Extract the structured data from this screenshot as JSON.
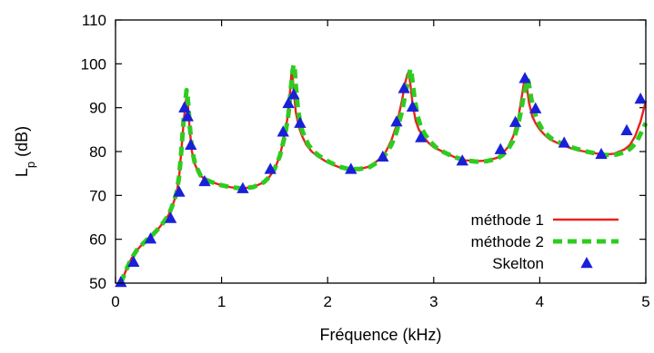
{
  "chart_data": {
    "type": "line",
    "xlabel": "Fréquence (kHz)",
    "ylabel_main": "L",
    "ylabel_sub": "p",
    "ylabel_unit": "(dB)",
    "xlim": [
      0,
      5
    ],
    "ylim": [
      50,
      110
    ],
    "xticks": [
      0,
      1,
      2,
      3,
      4,
      5
    ],
    "yticks": [
      50,
      60,
      70,
      80,
      90,
      100,
      110
    ],
    "grid": false,
    "legend_position": "bottom-right",
    "series": [
      {
        "name": "méthode 1",
        "style": "solid-line",
        "color": "#e8231e",
        "x": [
          0.05,
          0.1,
          0.15,
          0.2,
          0.25,
          0.3,
          0.35,
          0.4,
          0.45,
          0.5,
          0.55,
          0.58,
          0.6,
          0.62,
          0.64,
          0.66,
          0.67,
          0.68,
          0.7,
          0.72,
          0.75,
          0.8,
          0.85,
          0.9,
          1.0,
          1.1,
          1.2,
          1.3,
          1.4,
          1.45,
          1.5,
          1.55,
          1.6,
          1.63,
          1.65,
          1.66,
          1.67,
          1.68,
          1.7,
          1.73,
          1.76,
          1.8,
          1.85,
          1.9,
          2.0,
          2.1,
          2.2,
          2.3,
          2.4,
          2.5,
          2.55,
          2.6,
          2.65,
          2.7,
          2.73,
          2.75,
          2.76,
          2.77,
          2.78,
          2.8,
          2.83,
          2.86,
          2.9,
          2.95,
          3.0,
          3.1,
          3.2,
          3.3,
          3.4,
          3.5,
          3.6,
          3.65,
          3.7,
          3.75,
          3.8,
          3.83,
          3.85,
          3.86,
          3.87,
          3.88,
          3.9,
          3.93,
          3.96,
          4.0,
          4.05,
          4.1,
          4.2,
          4.3,
          4.4,
          4.5,
          4.6,
          4.7,
          4.8,
          4.85,
          4.9,
          4.95,
          5.0
        ],
        "y": [
          50.0,
          53.0,
          55.6,
          57.5,
          58.8,
          60.0,
          61.0,
          62.3,
          63.8,
          65.5,
          68.5,
          71.0,
          74.5,
          80.0,
          86.0,
          91.0,
          92.5,
          91.5,
          85.0,
          80.0,
          77.0,
          74.5,
          73.6,
          73.1,
          72.3,
          71.8,
          71.6,
          71.9,
          73.0,
          74.2,
          76.0,
          79.0,
          84.5,
          89.0,
          95.0,
          98.5,
          97.0,
          94.0,
          89.0,
          85.5,
          83.5,
          81.5,
          80.0,
          79.0,
          77.5,
          76.5,
          75.9,
          76.0,
          76.6,
          78.5,
          80.0,
          82.5,
          86.0,
          91.5,
          95.5,
          97.5,
          98.0,
          97.0,
          95.5,
          91.0,
          87.0,
          85.0,
          83.5,
          82.0,
          81.0,
          79.8,
          78.7,
          78.0,
          77.8,
          77.9,
          78.6,
          79.6,
          81.0,
          83.5,
          88.0,
          92.5,
          95.5,
          96.5,
          96.0,
          94.5,
          91.0,
          88.0,
          86.5,
          85.0,
          83.7,
          82.7,
          81.6,
          80.7,
          80.1,
          79.7,
          79.3,
          79.5,
          80.5,
          81.5,
          83.5,
          86.8,
          91.5
        ]
      },
      {
        "name": "méthode 2",
        "style": "dashed-line",
        "color": "#2ecc1f",
        "x": [
          0.05,
          0.1,
          0.15,
          0.2,
          0.25,
          0.3,
          0.35,
          0.4,
          0.45,
          0.5,
          0.55,
          0.58,
          0.6,
          0.62,
          0.64,
          0.66,
          0.67,
          0.68,
          0.7,
          0.72,
          0.75,
          0.8,
          0.85,
          0.9,
          1.0,
          1.1,
          1.2,
          1.3,
          1.4,
          1.45,
          1.5,
          1.55,
          1.6,
          1.63,
          1.65,
          1.67,
          1.68,
          1.69,
          1.7,
          1.72,
          1.75,
          1.78,
          1.82,
          1.87,
          1.92,
          2.0,
          2.1,
          2.2,
          2.3,
          2.4,
          2.5,
          2.55,
          2.6,
          2.65,
          2.7,
          2.74,
          2.77,
          2.78,
          2.79,
          2.8,
          2.82,
          2.85,
          2.88,
          2.92,
          2.97,
          3.02,
          3.1,
          3.2,
          3.3,
          3.4,
          3.5,
          3.6,
          3.65,
          3.7,
          3.75,
          3.8,
          3.84,
          3.87,
          3.88,
          3.89,
          3.9,
          3.92,
          3.95,
          3.98,
          4.02,
          4.07,
          4.12,
          4.22,
          4.32,
          4.42,
          4.52,
          4.62,
          4.72,
          4.82,
          4.87,
          4.92,
          4.97,
          5.0
        ],
        "y": [
          50.0,
          53.0,
          55.6,
          57.5,
          58.8,
          60.0,
          61.0,
          62.3,
          63.8,
          65.5,
          68.5,
          71.0,
          74.5,
          80.0,
          86.5,
          92.0,
          94.0,
          92.5,
          86.0,
          80.5,
          77.2,
          74.6,
          73.6,
          73.1,
          72.3,
          71.8,
          71.6,
          71.9,
          73.0,
          74.2,
          76.0,
          79.0,
          84.0,
          88.5,
          93.5,
          98.5,
          99.8,
          98.5,
          95.0,
          89.5,
          85.5,
          83.5,
          81.5,
          80.0,
          79.0,
          77.8,
          76.6,
          76.0,
          76.0,
          76.5,
          78.0,
          79.5,
          81.5,
          84.5,
          89.0,
          94.0,
          97.5,
          98.8,
          98.0,
          96.0,
          92.0,
          88.0,
          85.5,
          83.8,
          82.2,
          81.0,
          79.8,
          78.7,
          78.0,
          77.7,
          77.8,
          78.4,
          79.2,
          80.5,
          82.5,
          86.5,
          91.5,
          95.0,
          96.5,
          96.2,
          95.0,
          92.0,
          89.0,
          87.0,
          85.2,
          83.8,
          82.8,
          81.7,
          80.8,
          80.1,
          79.6,
          79.2,
          79.3,
          80.0,
          81.0,
          82.5,
          85.0,
          86.5
        ]
      },
      {
        "name": "Skelton",
        "style": "triangle-markers",
        "color": "#1a20d8",
        "x": [
          0.05,
          0.17,
          0.33,
          0.52,
          0.6,
          0.65,
          0.68,
          0.71,
          0.84,
          1.2,
          1.46,
          1.58,
          1.63,
          1.68,
          1.74,
          2.22,
          2.52,
          2.65,
          2.72,
          2.8,
          2.88,
          3.27,
          3.63,
          3.77,
          3.86,
          3.96,
          4.23,
          4.58,
          4.82,
          4.95
        ],
        "y": [
          50.2,
          54.8,
          60.1,
          64.8,
          70.8,
          90.0,
          88.0,
          81.5,
          73.2,
          71.6,
          76.0,
          84.5,
          91.0,
          93.0,
          86.5,
          76.0,
          78.8,
          86.8,
          94.4,
          90.2,
          83.2,
          77.9,
          80.5,
          86.7,
          96.7,
          89.8,
          82.0,
          79.4,
          84.8,
          92.0
        ]
      }
    ]
  }
}
